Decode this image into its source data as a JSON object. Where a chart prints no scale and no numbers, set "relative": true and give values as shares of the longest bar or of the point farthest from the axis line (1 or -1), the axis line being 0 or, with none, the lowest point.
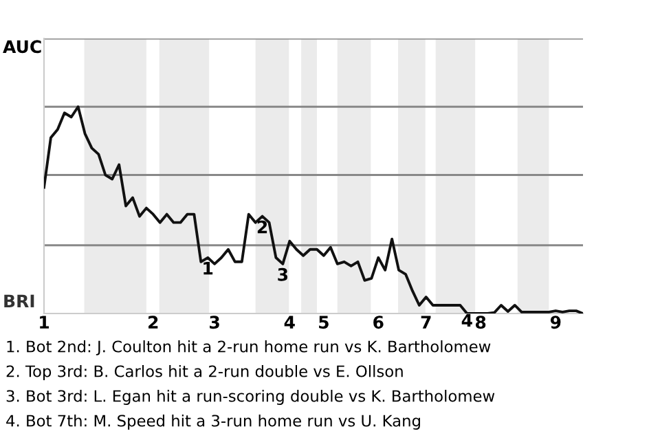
{
  "chart_data": {
    "type": "line",
    "relative": true,
    "categories": [
      "1",
      null,
      null,
      null,
      null,
      null,
      null,
      null,
      null,
      null,
      null,
      null,
      null,
      null,
      null,
      null,
      "2",
      null,
      null,
      null,
      null,
      null,
      null,
      null,
      null,
      "3",
      null,
      null,
      null,
      null,
      null,
      null,
      null,
      null,
      null,
      null,
      "4",
      null,
      null,
      null,
      null,
      "5",
      null,
      null,
      null,
      null,
      null,
      null,
      null,
      "6",
      null,
      null,
      null,
      null,
      null,
      null,
      "7",
      null,
      null,
      null,
      null,
      null,
      null,
      null,
      "8",
      null,
      null,
      null,
      null,
      null,
      null,
      null,
      null,
      null,
      null,
      "9",
      null,
      null,
      null,
      null
    ],
    "series": [
      {
        "color": "#111111",
        "values": [
          0.61,
          0.85,
          0.89,
          0.97,
          0.95,
          1,
          0.87,
          0.8,
          0.77,
          0.67,
          0.65,
          0.72,
          0.52,
          0.56,
          0.47,
          0.51,
          0.48,
          0.44,
          0.48,
          0.44,
          0.44,
          0.48,
          0.48,
          0.25,
          0.27,
          0.24,
          0.27,
          0.31,
          0.25,
          0.25,
          0.48,
          0.44,
          0.47,
          0.44,
          0.27,
          0.24,
          0.35,
          0.31,
          0.28,
          0.31,
          0.31,
          0.28,
          0.32,
          0.24,
          0.25,
          0.23,
          0.25,
          0.16,
          0.17,
          0.27,
          0.21,
          0.36,
          0.21,
          0.19,
          0.11,
          0.04,
          0.08,
          0.04,
          0.04,
          0.04,
          0.04,
          0.04,
          0,
          0,
          0,
          0,
          0.004,
          0.04,
          0.01,
          0.04,
          0.007,
          0.007,
          0.007,
          0.007,
          0.007,
          0.013,
          0.007,
          0.013,
          0.013,
          0
        ]
      }
    ],
    "grid": false,
    "marker": "none",
    "line_style": "solid",
    "ref_lines": [
      {
        "axis": "y",
        "value": 0.33,
        "color": "#888888"
      },
      {
        "axis": "y",
        "value": 0.67,
        "color": "#888888"
      },
      {
        "axis": "y",
        "value": 1,
        "color": "#888888"
      },
      {
        "axis": "y",
        "value": 1.33,
        "color": "#888888"
      }
    ],
    "annotations": [
      "AUC",
      "BRI",
      "1. Bot 2nd: J. Coulton hit a 2-run home run vs K. Bartholomew",
      "2. Top 3rd: B. Carlos hit a 2-run double vs E. Ollson",
      "3. Bot 3rd: L. Egan hit a run-scoring double vs K. Bartholomew",
      "4. Bot 7th: M. Speed hit a 3-run home run vs U. Kang",
      {
        "text": "1",
        "y": 0.27
      },
      {
        "text": "2",
        "y": 0.47
      },
      {
        "text": "3",
        "y": 0.24
      },
      {
        "text": "4",
        "y": 0
      }
    ]
  }
}
